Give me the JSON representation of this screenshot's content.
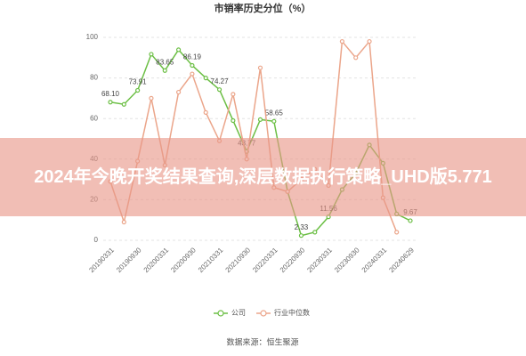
{
  "chart_data": {
    "type": "line",
    "title": "市销率历史分位（%）",
    "categories": [
      "20190331",
      null,
      "20190930",
      null,
      "20200331",
      null,
      "20200930",
      null,
      "20210331",
      null,
      "20210930",
      null,
      "20220331",
      null,
      "20220930",
      null,
      "20230331",
      null,
      "20230930",
      null,
      "20240331",
      null,
      "20240629"
    ],
    "series": [
      {
        "name": "公司",
        "color": "#6cbf45",
        "values": [
          68.1,
          67,
          73.91,
          91.7,
          83.65,
          93.9,
          86.19,
          80,
          74.27,
          59,
          43.77,
          59.5,
          58.65,
          24,
          2.33,
          4,
          11.56,
          25,
          33,
          47,
          38,
          13,
          9.67
        ],
        "value_labels": [
          "68.10",
          null,
          "73.91",
          null,
          "83.65",
          null,
          "86.19",
          null,
          "74.27",
          null,
          "43.77",
          null,
          "58.65",
          null,
          "2.33",
          null,
          "11.56",
          null,
          null,
          null,
          null,
          null,
          "9.67"
        ]
      },
      {
        "name": "行业中位数",
        "color": "#eba58a",
        "values": [
          29,
          9,
          39,
          70,
          37,
          73,
          82,
          63,
          49,
          72,
          40,
          85,
          26,
          24,
          30,
          35,
          27,
          98,
          90,
          98,
          21,
          4,
          null
        ]
      }
    ],
    "ylim": [
      0,
      100
    ],
    "yticks": [
      0,
      20,
      40,
      60,
      80,
      100
    ],
    "grid": true,
    "legend": "bottom",
    "source": "数据来源：恒生聚源"
  },
  "banner": "2024年今晚开奖结果查询,深层数据执行策略_UHD版5.771"
}
